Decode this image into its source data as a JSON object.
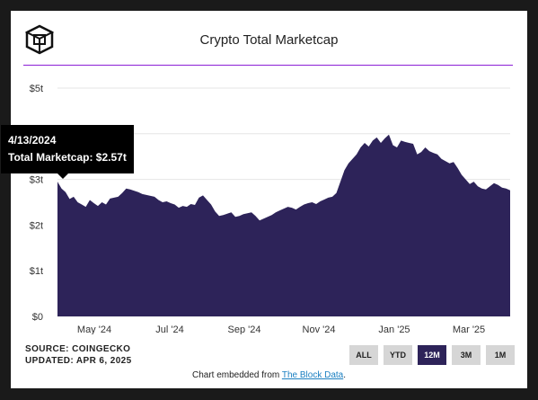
{
  "chart_data": {
    "type": "area",
    "title": "Crypto Total Marketcap",
    "y_ticks": [
      "$0",
      "$1t",
      "$2t",
      "$3t",
      "$4t",
      "$5t"
    ],
    "ylim": [
      0,
      5
    ],
    "x_ticks": [
      "May '24",
      "Jul '24",
      "Sep '24",
      "Nov '24",
      "Jan '25",
      "Mar '25"
    ],
    "grid": true,
    "color": "#2d2359",
    "series": [
      {
        "values": [
          2.95,
          2.8,
          2.72,
          2.57,
          2.62,
          2.5,
          2.45,
          2.4,
          2.55,
          2.48,
          2.42,
          2.5,
          2.45,
          2.58,
          2.6,
          2.62,
          2.7,
          2.8,
          2.78,
          2.75,
          2.72,
          2.68,
          2.66,
          2.64,
          2.62,
          2.55,
          2.5,
          2.52,
          2.48,
          2.45,
          2.38,
          2.42,
          2.4,
          2.46,
          2.44,
          2.6,
          2.65,
          2.55,
          2.45,
          2.3,
          2.2,
          2.22,
          2.25,
          2.28,
          2.18,
          2.2,
          2.24,
          2.26,
          2.28,
          2.2,
          2.1,
          2.14,
          2.18,
          2.22,
          2.28,
          2.32,
          2.36,
          2.4,
          2.38,
          2.34,
          2.4,
          2.45,
          2.48,
          2.5,
          2.46,
          2.52,
          2.56,
          2.6,
          2.62,
          2.7,
          2.95,
          3.2,
          3.35,
          3.45,
          3.55,
          3.7,
          3.8,
          3.72,
          3.85,
          3.92,
          3.8,
          3.9,
          3.98,
          3.75,
          3.7,
          3.85,
          3.82,
          3.8,
          3.78,
          3.55,
          3.6,
          3.7,
          3.62,
          3.58,
          3.55,
          3.45,
          3.4,
          3.35,
          3.38,
          3.25,
          3.1,
          3.0,
          2.9,
          2.95,
          2.85,
          2.8,
          2.78,
          2.85,
          2.92,
          2.88,
          2.82,
          2.8,
          2.76
        ]
      }
    ]
  },
  "tooltip": {
    "date": "4/13/2024",
    "label": "Total Marketcap: $2.57t"
  },
  "footer": {
    "source": "SOURCE: COINGECKO",
    "updated": "UPDATED: APR 6, 2025",
    "embed_prefix": "Chart embedded from ",
    "embed_link": "The Block Data",
    "embed_suffix": "."
  },
  "range_buttons": [
    {
      "label": "ALL",
      "active": false
    },
    {
      "label": "YTD",
      "active": false
    },
    {
      "label": "12M",
      "active": true
    },
    {
      "label": "3M",
      "active": false
    },
    {
      "label": "1M",
      "active": false
    }
  ]
}
